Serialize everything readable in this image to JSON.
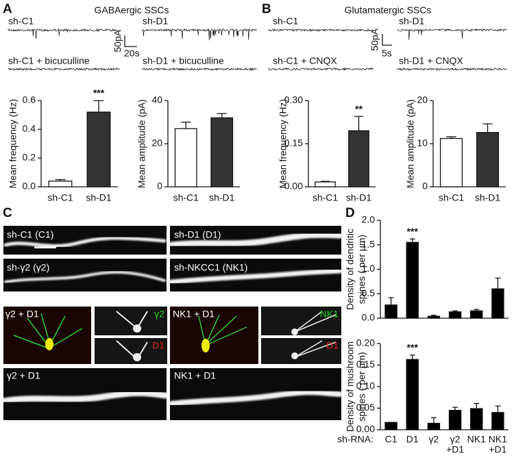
{
  "panel_a": {
    "letter": "A",
    "title": "GABAergic SSCs",
    "traces": [
      "sh-C1",
      "sh-D1",
      "sh-C1 + bicuculline",
      "sh-D1 + bicuculline"
    ],
    "scale": [
      "50pA",
      "20s"
    ]
  },
  "panel_b": {
    "letter": "B",
    "title": "Glutamatergic SSCs",
    "traces": [
      "sh-C1",
      "sh-D1",
      "sh-C1 + CNQX",
      "sh-D1 + CNQX"
    ],
    "scale": [
      "50pA",
      "5s"
    ]
  },
  "panel_c": {
    "letter": "C",
    "images": [
      "sh-C1 (C1)",
      "sh-D1 (D1)",
      "sh-γ2 (γ2)",
      "sh-NKCC1 (NK1)",
      "γ2 + D1",
      "γ2",
      "D1",
      "NK1 + D1",
      "NK1",
      "D1",
      "γ2 + D1",
      "NK1 + D1"
    ]
  },
  "panel_d": {
    "letter": "D"
  },
  "chart_data": [
    {
      "type": "bar",
      "ylabel": "Mean frequency (Hz)",
      "categories": [
        "sh-C1",
        "sh-D1"
      ],
      "values": [
        0.04,
        0.52
      ],
      "errors": [
        0.01,
        0.08
      ],
      "colors": [
        "#ffffff",
        "#333333"
      ],
      "significance": [
        null,
        "***"
      ],
      "ylim": [
        0,
        0.6
      ],
      "yticks": [
        {
          "value": 0,
          "label": "0.0"
        },
        0.2,
        0.4,
        0.6
      ]
    },
    {
      "type": "bar",
      "ylabel": "Mean amplitude (pA)",
      "categories": [
        "sh-C1",
        "sh-D1"
      ],
      "values": [
        27,
        32
      ],
      "errors": [
        3,
        2
      ],
      "colors": [
        "#ffffff",
        "#333333"
      ],
      "ylim": [
        0,
        40
      ],
      "yticks": [
        0,
        20,
        40
      ]
    },
    {
      "type": "bar",
      "ylabel": "Mean frequency  (Hz)",
      "categories": [
        "sh-C1",
        "sh-D1"
      ],
      "values": [
        0.017,
        0.195
      ],
      "errors": [
        0.002,
        0.05
      ],
      "colors": [
        "#ffffff",
        "#333333"
      ],
      "significance": [
        null,
        "**"
      ],
      "ylim": [
        0,
        0.3
      ],
      "yticks": [
        {
          "value": 0,
          "label": "0.00"
        },
        0.15,
        {
          "value": 0.3,
          "label": "0.30"
        }
      ]
    },
    {
      "type": "bar",
      "ylabel": "Mean amplitude (pA)",
      "categories": [
        "sh-C1",
        "sh-D1"
      ],
      "values": [
        11.2,
        12.6
      ],
      "errors": [
        0.4,
        2.0
      ],
      "colors": [
        "#ffffff",
        "#333333"
      ],
      "ylim": [
        0,
        20
      ],
      "yticks": [
        0,
        10,
        20
      ]
    },
    {
      "type": "bar",
      "ylabel": [
        "Density of dendritic",
        "spines ( per μm)"
      ],
      "values": [
        0.27,
        1.55,
        0.04,
        0.13,
        0.15,
        0.6
      ],
      "errors": [
        0.15,
        0.07,
        0.02,
        0.02,
        0.03,
        0.22
      ],
      "color": "#000000",
      "significance": [
        null,
        "***",
        null,
        null,
        null,
        null
      ],
      "ylim": [
        0,
        2
      ],
      "yticks": [
        {
          "value": 0,
          "label": "0.0"
        },
        0.5,
        {
          "value": 1,
          "label": "1.0"
        },
        1.5,
        {
          "value": 2,
          "label": "2.0"
        }
      ]
    },
    {
      "type": "bar",
      "ylabel": [
        "Density of mushroom",
        "spines ( per μm)"
      ],
      "xlabel": "sh-RNA:",
      "categories": [
        [
          "C1"
        ],
        [
          "D1"
        ],
        [
          "γ2"
        ],
        [
          "γ2",
          "+D1"
        ],
        [
          "NK1"
        ],
        [
          "NK1",
          "+D1"
        ]
      ],
      "values": [
        0.017,
        0.163,
        0.015,
        0.045,
        0.049,
        0.04
      ],
      "errors": [
        0,
        0.01,
        0.013,
        0.007,
        0.012,
        0.015
      ],
      "color": "#000000",
      "significance": [
        null,
        "***",
        null,
        null,
        null,
        null
      ],
      "ylim": [
        0,
        0.2
      ],
      "yticks": [
        {
          "value": 0,
          "label": "0.00"
        },
        0.05,
        {
          "value": 0.1,
          "label": "0.10"
        },
        0.15,
        {
          "value": 0.2,
          "label": "0.20"
        }
      ]
    }
  ]
}
